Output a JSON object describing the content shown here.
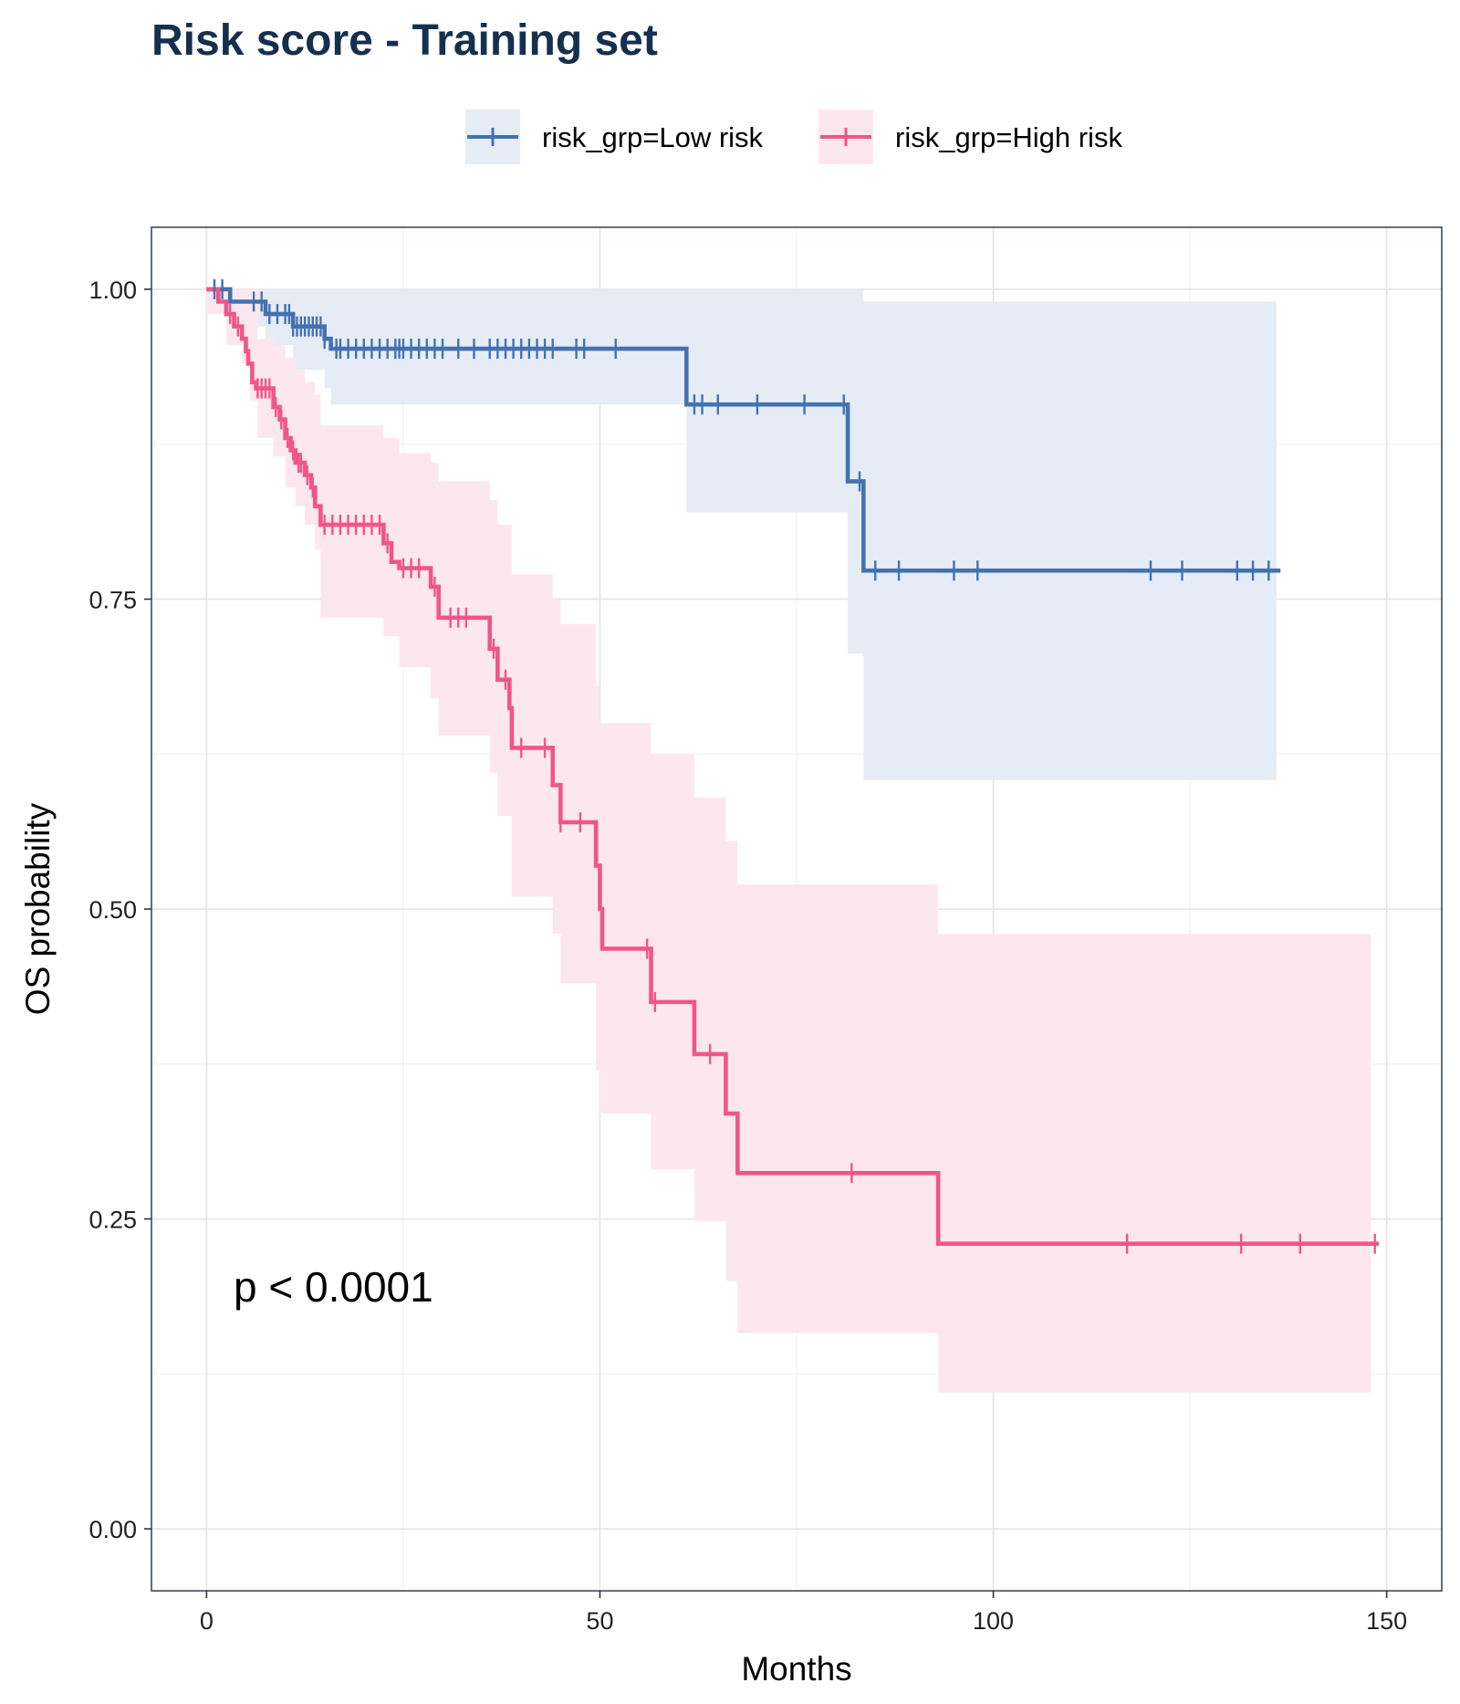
{
  "chart_data": {
    "type": "line",
    "subtype": "kaplan-meier",
    "title": "Risk score - Training set",
    "xlabel": "Months",
    "ylabel": "OS probability",
    "xlim": [
      -7,
      157
    ],
    "ylim": [
      -0.05,
      1.05
    ],
    "x_ticks": [
      "0",
      "50",
      "100",
      "150"
    ],
    "x_tick_values": [
      0,
      50,
      100,
      150
    ],
    "y_ticks": [
      "0.00",
      "0.25",
      "0.50",
      "0.75",
      "1.00"
    ],
    "y_tick_values": [
      0,
      0.25,
      0.5,
      0.75,
      1.0
    ],
    "grid": true,
    "legend_position": "top",
    "annotation": "p < 0.0001",
    "series": [
      {
        "name": "risk_grp=Low risk",
        "color": "#4472b0",
        "band_color": "#e6ecf5",
        "steps": [
          [
            0,
            1.0
          ],
          [
            3,
            0.99
          ],
          [
            7.5,
            0.98
          ],
          [
            11,
            0.97
          ],
          [
            15,
            0.96
          ],
          [
            15.8,
            0.952
          ],
          [
            61,
            0.907
          ],
          [
            81.5,
            0.845
          ],
          [
            83.5,
            0.773
          ]
        ],
        "end_x": 136.5,
        "ci": [
          {
            "x0": 0,
            "x1": 3,
            "lo": 1.0,
            "hi": 1.0
          },
          {
            "x0": 3,
            "x1": 7.5,
            "lo": 0.97,
            "hi": 1.0
          },
          {
            "x0": 7.5,
            "x1": 11,
            "lo": 0.955,
            "hi": 1.0
          },
          {
            "x0": 11,
            "x1": 15,
            "lo": 0.935,
            "hi": 1.0
          },
          {
            "x0": 15,
            "x1": 15.8,
            "lo": 0.92,
            "hi": 1.0
          },
          {
            "x0": 15.8,
            "x1": 61,
            "lo": 0.907,
            "hi": 1.0
          },
          {
            "x0": 61,
            "x1": 81.5,
            "lo": 0.82,
            "hi": 1.0
          },
          {
            "x0": 81.5,
            "x1": 83.5,
            "lo": 0.706,
            "hi": 1.0
          },
          {
            "x0": 83.5,
            "x1": 136,
            "lo": 0.604,
            "hi": 0.99
          }
        ],
        "censor_x": [
          1,
          2,
          6,
          7,
          8,
          9,
          10,
          10.5,
          11,
          11.5,
          12,
          12.5,
          13,
          13.5,
          14,
          14.5,
          15,
          16.5,
          17,
          18,
          19,
          20,
          21,
          22,
          23,
          24,
          24.5,
          25,
          26,
          27,
          28,
          29,
          30,
          32,
          34,
          36,
          37,
          38,
          39,
          40,
          41,
          42,
          43,
          44,
          47,
          48,
          52,
          62,
          63,
          65,
          70,
          76,
          81,
          83,
          85,
          88,
          95,
          98,
          120,
          124,
          131,
          133,
          135
        ]
      },
      {
        "name": "risk_grp=High risk",
        "color": "#f0558a",
        "band_color": "#fde7ee",
        "steps": [
          [
            0,
            1.0
          ],
          [
            1.5,
            0.99
          ],
          [
            2.5,
            0.98
          ],
          [
            3.5,
            0.97
          ],
          [
            4.5,
            0.96
          ],
          [
            5,
            0.95
          ],
          [
            5.3,
            0.94
          ],
          [
            5.8,
            0.925
          ],
          [
            6.3,
            0.92
          ],
          [
            8.5,
            0.905
          ],
          [
            9.3,
            0.895
          ],
          [
            10,
            0.88
          ],
          [
            10.7,
            0.87
          ],
          [
            11.3,
            0.86
          ],
          [
            12.5,
            0.85
          ],
          [
            13.3,
            0.84
          ],
          [
            13.8,
            0.825
          ],
          [
            14.5,
            0.81
          ],
          [
            22.5,
            0.795
          ],
          [
            23.5,
            0.78
          ],
          [
            24.5,
            0.775
          ],
          [
            28.5,
            0.76
          ],
          [
            29.5,
            0.735
          ],
          [
            36,
            0.71
          ],
          [
            37,
            0.685
          ],
          [
            38.5,
            0.662
          ],
          [
            38.8,
            0.63
          ],
          [
            44,
            0.6
          ],
          [
            45,
            0.57
          ],
          [
            49.5,
            0.535
          ],
          [
            50,
            0.5
          ],
          [
            50.3,
            0.468
          ],
          [
            56.5,
            0.425
          ],
          [
            62,
            0.383
          ],
          [
            66,
            0.335
          ],
          [
            67.5,
            0.287
          ],
          [
            93,
            0.23
          ]
        ],
        "end_x": 149,
        "ci": [
          {
            "x0": 0,
            "x1": 2.5,
            "lo": 0.98,
            "hi": 1.0
          },
          {
            "x0": 2.5,
            "x1": 4.5,
            "lo": 0.955,
            "hi": 1.0
          },
          {
            "x0": 4.5,
            "x1": 5.5,
            "lo": 0.94,
            "hi": 1.0
          },
          {
            "x0": 5.5,
            "x1": 6.5,
            "lo": 0.91,
            "hi": 1.0
          },
          {
            "x0": 6.5,
            "x1": 8.5,
            "lo": 0.88,
            "hi": 0.96
          },
          {
            "x0": 8.5,
            "x1": 10,
            "lo": 0.865,
            "hi": 0.955
          },
          {
            "x0": 10,
            "x1": 11.3,
            "lo": 0.84,
            "hi": 0.945
          },
          {
            "x0": 11.3,
            "x1": 12.5,
            "lo": 0.825,
            "hi": 0.935
          },
          {
            "x0": 12.5,
            "x1": 13.8,
            "lo": 0.81,
            "hi": 0.925
          },
          {
            "x0": 13.8,
            "x1": 14.5,
            "lo": 0.79,
            "hi": 0.915
          },
          {
            "x0": 14.5,
            "x1": 22.5,
            "lo": 0.735,
            "hi": 0.89
          },
          {
            "x0": 22.5,
            "x1": 24.5,
            "lo": 0.72,
            "hi": 0.88
          },
          {
            "x0": 24.5,
            "x1": 28.5,
            "lo": 0.695,
            "hi": 0.868
          },
          {
            "x0": 28.5,
            "x1": 29.5,
            "lo": 0.67,
            "hi": 0.86
          },
          {
            "x0": 29.5,
            "x1": 36,
            "lo": 0.64,
            "hi": 0.845
          },
          {
            "x0": 36,
            "x1": 37,
            "lo": 0.61,
            "hi": 0.83
          },
          {
            "x0": 37,
            "x1": 38.8,
            "lo": 0.575,
            "hi": 0.81
          },
          {
            "x0": 38.8,
            "x1": 44,
            "lo": 0.51,
            "hi": 0.77
          },
          {
            "x0": 44,
            "x1": 45,
            "lo": 0.48,
            "hi": 0.75
          },
          {
            "x0": 45,
            "x1": 49.5,
            "lo": 0.44,
            "hi": 0.73
          },
          {
            "x0": 49.5,
            "x1": 50,
            "lo": 0.37,
            "hi": 0.68
          },
          {
            "x0": 50,
            "x1": 56.5,
            "lo": 0.335,
            "hi": 0.65
          },
          {
            "x0": 56.5,
            "x1": 62,
            "lo": 0.29,
            "hi": 0.625
          },
          {
            "x0": 62,
            "x1": 66,
            "lo": 0.248,
            "hi": 0.59
          },
          {
            "x0": 66,
            "x1": 67.5,
            "lo": 0.2,
            "hi": 0.555
          },
          {
            "x0": 67.5,
            "x1": 93,
            "lo": 0.158,
            "hi": 0.52
          },
          {
            "x0": 93,
            "x1": 148,
            "lo": 0.11,
            "hi": 0.48
          }
        ],
        "censor_x": [
          3,
          4,
          6.5,
          7,
          7.5,
          8,
          8.8,
          9.5,
          10.3,
          11,
          11.7,
          12,
          12.8,
          13.5,
          15,
          16,
          17,
          18,
          19,
          20,
          21,
          22,
          23,
          25,
          26,
          27,
          29,
          31,
          32,
          33,
          36.5,
          38,
          40,
          43,
          45,
          47.5,
          56,
          57,
          64,
          82,
          117,
          131.5,
          139,
          148.5
        ]
      }
    ]
  }
}
